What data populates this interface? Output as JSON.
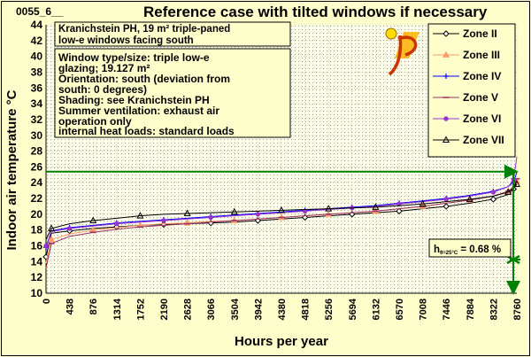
{
  "chart_data": {
    "type": "line",
    "code": "0055_6__",
    "title": "Reference case with tilted windows if necessary",
    "xlabel": "Hours per year",
    "ylabel": "Indoor air temperature °C",
    "xlim": [
      0,
      8760
    ],
    "ylim": [
      10,
      44
    ],
    "x_ticks": [
      0,
      438,
      876,
      1314,
      1752,
      2190,
      2628,
      3066,
      3504,
      3942,
      4380,
      4818,
      5256,
      5694,
      6132,
      6570,
      7008,
      7446,
      7884,
      8322,
      8760
    ],
    "y_ticks": [
      10,
      12,
      14,
      16,
      18,
      20,
      22,
      24,
      26,
      28,
      30,
      32,
      34,
      36,
      38,
      40,
      42,
      44
    ],
    "grid": "dotted",
    "legend_position": "top-right",
    "threshold_line": {
      "y": 25.4,
      "color": "#008000"
    },
    "info_box_title": [
      "Kranichstein PH, 19 m² triple-paned",
      "low-e windows facing south"
    ],
    "info_box_details": [
      "Window type/size: triple low-e",
      "glazing; 19.127 m²",
      "Orientation: south (deviation from",
      "south: 0 degrees)",
      "Shading: see Kranichstein PH",
      "Summer ventilation: exhaust air",
      "operation only",
      "internal heat loads: standard loads"
    ],
    "annotation_pre": "h",
    "annotation_sub": "θ=25°C",
    "annotation_post": " = 0.68 %",
    "series": [
      {
        "name": "Zone II",
        "color": "#000000",
        "marker": "diamond",
        "x": [
          0,
          100,
          438,
          876,
          1314,
          1752,
          2190,
          2628,
          3066,
          3504,
          3942,
          4380,
          4818,
          5256,
          5694,
          6132,
          6570,
          7008,
          7446,
          7884,
          8322,
          8600,
          8700,
          8760
        ],
        "y": [
          14.6,
          17.6,
          17.9,
          18.2,
          18.4,
          18.6,
          18.7,
          18.8,
          18.9,
          19.0,
          19.2,
          19.4,
          19.6,
          19.8,
          20.0,
          20.2,
          20.4,
          20.7,
          21.0,
          21.4,
          21.9,
          22.5,
          23.2,
          24.0
        ]
      },
      {
        "name": "Zone III",
        "color": "#ff9966",
        "marker": "triangle",
        "x": [
          0,
          100,
          438,
          876,
          1314,
          1752,
          2190,
          2628,
          3066,
          3504,
          3942,
          4380,
          4818,
          5256,
          5694,
          6132,
          6570,
          7008,
          7446,
          7884,
          8322,
          8600,
          8700,
          8760
        ],
        "y": [
          13.8,
          16.8,
          17.5,
          18.0,
          18.3,
          18.6,
          18.8,
          18.9,
          19.1,
          19.2,
          19.4,
          19.6,
          19.8,
          20.0,
          20.2,
          20.4,
          20.7,
          21.0,
          21.4,
          21.8,
          22.3,
          22.9,
          23.4,
          24.2
        ]
      },
      {
        "name": "Zone IV",
        "color": "#0000ff",
        "marker": "plus",
        "x": [
          0,
          100,
          438,
          876,
          1314,
          1752,
          2190,
          2628,
          3066,
          3504,
          3942,
          4380,
          4818,
          5256,
          5694,
          6132,
          6570,
          7008,
          7446,
          7884,
          8322,
          8600,
          8700,
          8760
        ],
        "y": [
          15.8,
          17.9,
          18.3,
          18.6,
          18.9,
          19.1,
          19.3,
          19.5,
          19.7,
          19.9,
          20.1,
          20.3,
          20.5,
          20.7,
          20.9,
          21.1,
          21.4,
          21.7,
          22.0,
          22.4,
          22.9,
          23.5,
          24.1,
          25.3
        ]
      },
      {
        "name": "Zone V",
        "color": "#993366",
        "marker": "dash",
        "x": [
          0,
          100,
          438,
          876,
          1314,
          1752,
          2190,
          2628,
          3066,
          3504,
          3942,
          4380,
          4818,
          5256,
          5694,
          6132,
          6570,
          7008,
          7446,
          7884,
          8322,
          8600,
          8700,
          8760
        ],
        "y": [
          13.2,
          16.3,
          17.2,
          17.7,
          18.1,
          18.4,
          18.6,
          18.8,
          19.0,
          19.2,
          19.4,
          19.6,
          19.8,
          20.0,
          20.2,
          20.4,
          20.7,
          21.0,
          21.4,
          21.8,
          22.3,
          22.9,
          23.5,
          24.5
        ]
      },
      {
        "name": "Zone VI",
        "color": "#9933cc",
        "marker": "dot",
        "x": [
          0,
          100,
          438,
          876,
          1314,
          1752,
          2190,
          2628,
          3066,
          3504,
          3942,
          4380,
          4818,
          5256,
          5694,
          6132,
          6570,
          7008,
          7446,
          7884,
          8322,
          8600,
          8700,
          8760
        ],
        "y": [
          16.0,
          17.8,
          18.2,
          18.5,
          18.8,
          19.0,
          19.2,
          19.4,
          19.6,
          19.8,
          20.0,
          20.2,
          20.4,
          20.6,
          20.8,
          21.0,
          21.3,
          21.6,
          21.9,
          22.3,
          22.8,
          23.5,
          24.4,
          27.3
        ]
      },
      {
        "name": "Zone VII",
        "color": "#000000",
        "marker": "triangle-open",
        "x": [
          0,
          100,
          438,
          876,
          1314,
          1752,
          2190,
          2628,
          3066,
          3504,
          3942,
          4380,
          4818,
          5256,
          5694,
          6132,
          6570,
          7008,
          7446,
          7884,
          8322,
          8600,
          8700,
          8760
        ],
        "y": [
          16.8,
          18.2,
          18.8,
          19.2,
          19.5,
          19.8,
          20.0,
          20.1,
          20.2,
          20.3,
          20.4,
          20.5,
          20.6,
          20.7,
          20.8,
          20.9,
          21.1,
          21.3,
          21.6,
          21.9,
          22.3,
          22.8,
          23.3,
          23.8
        ]
      }
    ]
  }
}
